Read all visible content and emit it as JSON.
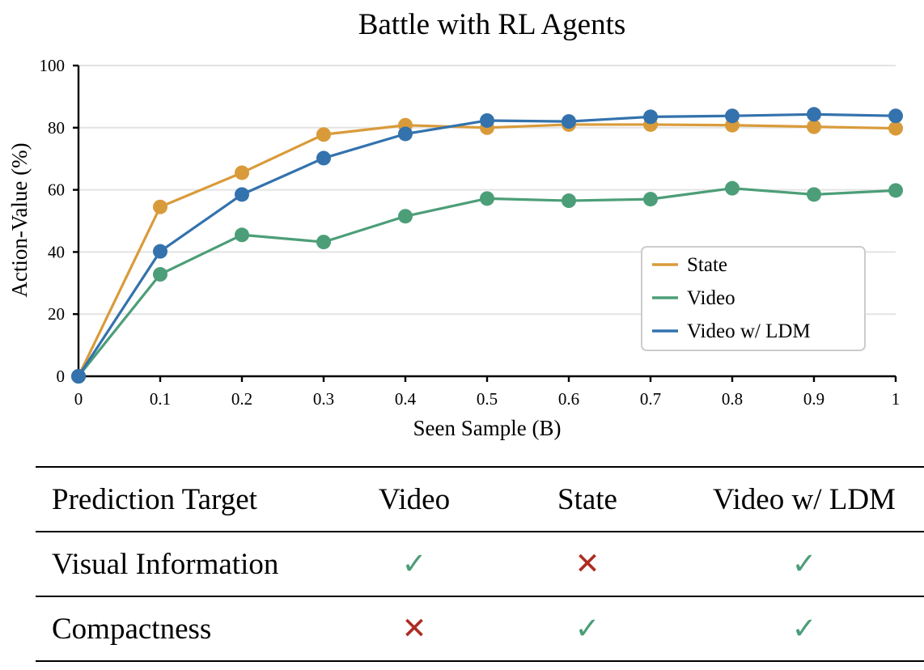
{
  "chart_data": {
    "type": "line",
    "title": "Battle with RL Agents",
    "xlabel": "Seen Sample (B)",
    "ylabel": "Action-Value (%)",
    "xlim": [
      0,
      1
    ],
    "ylim": [
      0,
      100
    ],
    "x": [
      0,
      0.1,
      0.2,
      0.3,
      0.4,
      0.5,
      0.6,
      0.7,
      0.8,
      0.9,
      1
    ],
    "x_tick_labels": [
      "0",
      "0.1",
      "0.2",
      "0.3",
      "0.4",
      "0.5",
      "0.6",
      "0.7",
      "0.8",
      "0.9",
      "1"
    ],
    "y_ticks": [
      0,
      20,
      40,
      60,
      80,
      100
    ],
    "y_tick_labels": [
      "0",
      "20",
      "40",
      "60",
      "80",
      "100"
    ],
    "grid": "horizontal",
    "legend_position": "center-right",
    "series": [
      {
        "name": "State",
        "color": "#d99b3a",
        "values": [
          0,
          54.5,
          65.5,
          77.8,
          80.8,
          80,
          81,
          81,
          80.8,
          80.3,
          79.8
        ]
      },
      {
        "name": "Video",
        "color": "#4c9e78",
        "values": [
          0,
          32.8,
          45.5,
          43.2,
          51.5,
          57.2,
          56.5,
          57,
          60.5,
          58.5,
          59.8
        ]
      },
      {
        "name": "Video w/ LDM",
        "color": "#3372ad",
        "values": [
          0,
          40.2,
          58.5,
          70.2,
          78,
          82.3,
          82,
          83.5,
          83.8,
          84.3,
          83.8
        ]
      }
    ]
  },
  "comparison_table": {
    "header": [
      "Prediction Target",
      "Video",
      "State",
      "Video w/ LDM"
    ],
    "rows": [
      {
        "label": "Visual Information",
        "marks": [
          "✓",
          "✕",
          "✓"
        ],
        "kinds": [
          "yes",
          "no",
          "yes"
        ]
      },
      {
        "label": "Compactness",
        "marks": [
          "✕",
          "✓",
          "✓"
        ],
        "kinds": [
          "no",
          "yes",
          "yes"
        ]
      }
    ]
  }
}
